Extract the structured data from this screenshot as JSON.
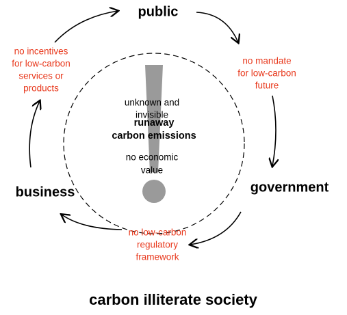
{
  "title": "carbon illiterate society",
  "nodes": [
    {
      "label": "public"
    },
    {
      "label": "government"
    },
    {
      "label": "business"
    }
  ],
  "links": [
    {
      "lines": [
        "no mandate",
        "for low-carbon",
        "future"
      ]
    },
    {
      "lines": [
        "no low-carbon",
        "regulatory",
        "framework"
      ]
    },
    {
      "lines": [
        "no incentives",
        "for low-carbon",
        "services or",
        "products"
      ]
    }
  ],
  "center": {
    "top": [
      "unknown and",
      "invisible"
    ],
    "main": [
      "runaway",
      "carbon emissions"
    ],
    "bottom": [
      "no economic",
      "value"
    ]
  }
}
